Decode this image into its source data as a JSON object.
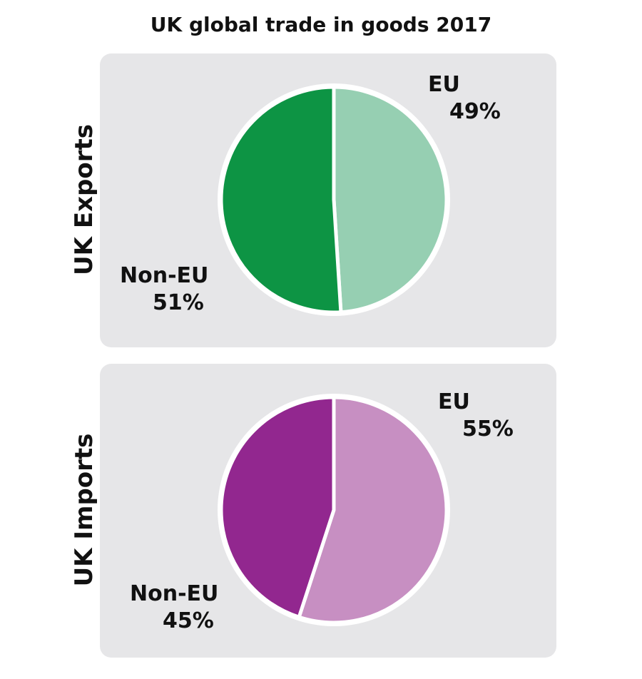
{
  "title": "UK global trade in goods 2017",
  "chart_data": [
    {
      "type": "pie",
      "label": "UK Exports",
      "slices": [
        {
          "name": "EU",
          "value": 49,
          "value_label": "49%",
          "color": "#96cfb2"
        },
        {
          "name": "Non-EU",
          "value": 51,
          "value_label": "51%",
          "color": "#0d9444"
        }
      ]
    },
    {
      "type": "pie",
      "label": "UK Imports",
      "slices": [
        {
          "name": "EU",
          "value": 55,
          "value_label": "55%",
          "color": "#c78fc2"
        },
        {
          "name": "Non-EU",
          "value": 45,
          "value_label": "45%",
          "color": "#92278f"
        }
      ]
    }
  ]
}
